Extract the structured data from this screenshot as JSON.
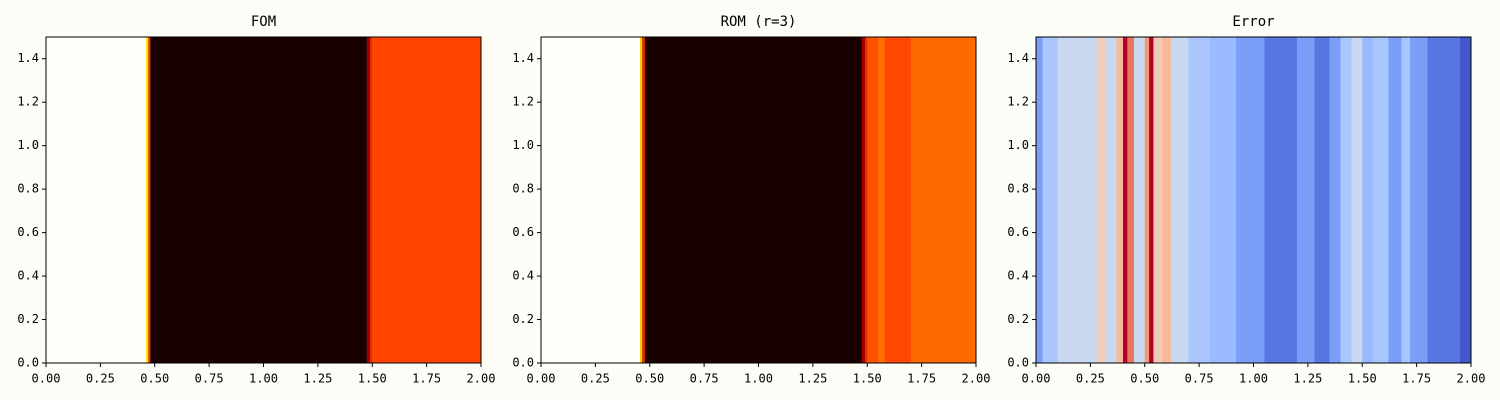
{
  "chart_data": [
    {
      "type": "heatmap",
      "title": "FOM",
      "x_edges": [
        0,
        0.46,
        0.47,
        0.48,
        1.475,
        1.49,
        1.5,
        2.0
      ],
      "colors": [
        "#fffffa",
        "#ffe600",
        "#e04000",
        "#180000",
        "#a00000",
        "#e83000",
        "#ff4500"
      ],
      "xlim": [
        0,
        2
      ],
      "ylim": [
        0,
        1.5
      ],
      "xticks": [
        {
          "value": 0,
          "label": "0.00"
        },
        0.25,
        {
          "value": 0.5,
          "label": "0.50"
        },
        0.75,
        {
          "value": 1,
          "label": "1.00"
        },
        1.25,
        {
          "value": 1.5,
          "label": "1.50"
        },
        1.75,
        {
          "value": 2,
          "label": "2.00"
        }
      ],
      "yticks": [
        {
          "value": 0,
          "label": "0.0"
        },
        0.2,
        0.4,
        0.6,
        0.8,
        {
          "value": 1,
          "label": "1.0"
        },
        1.2,
        1.4
      ]
    },
    {
      "type": "heatmap",
      "title": "ROM (r=3)",
      "x_edges": [
        0,
        0.455,
        0.465,
        0.478,
        1.475,
        1.49,
        1.5,
        1.55,
        1.58,
        1.7,
        2.0
      ],
      "colors": [
        "#fffffa",
        "#ffd000",
        "#d03000",
        "#180000",
        "#a00000",
        "#e83000",
        "#ff5000",
        "#ff7000",
        "#ff4800",
        "#ff6a00"
      ],
      "xlim": [
        0,
        2
      ],
      "ylim": [
        0,
        1.5
      ],
      "xticks": [
        {
          "value": 0,
          "label": "0.00"
        },
        0.25,
        {
          "value": 0.5,
          "label": "0.50"
        },
        0.75,
        {
          "value": 1,
          "label": "1.00"
        },
        1.25,
        {
          "value": 1.5,
          "label": "1.50"
        },
        1.75,
        {
          "value": 2,
          "label": "2.00"
        }
      ],
      "yticks": [
        {
          "value": 0,
          "label": "0.0"
        },
        0.2,
        0.4,
        0.6,
        0.8,
        {
          "value": 1,
          "label": "1.0"
        },
        1.2,
        1.4
      ]
    },
    {
      "type": "heatmap",
      "title": "Error",
      "x_edges": [
        0,
        0.03,
        0.1,
        0.28,
        0.32,
        0.37,
        0.4,
        0.42,
        0.45,
        0.5,
        0.52,
        0.54,
        0.58,
        0.62,
        0.7,
        0.8,
        0.92,
        1.05,
        1.2,
        1.28,
        1.35,
        1.4,
        1.45,
        1.5,
        1.55,
        1.62,
        1.68,
        1.72,
        1.8,
        1.95,
        2.0
      ],
      "colors": [
        "#7a9df8",
        "#aac7fd",
        "#c9d7f0",
        "#f2cbb7",
        "#c9d7f0",
        "#f7b89c",
        "#b40426",
        "#e8765c",
        "#c9d7f0",
        "#f4987a",
        "#b40426",
        "#f2cbb7",
        "#f7b89c",
        "#c9d7f0",
        "#aac7fd",
        "#9abbff",
        "#7b9ff9",
        "#5977e3",
        "#7b9ff9",
        "#5977e3",
        "#7b9ff9",
        "#aac7fd",
        "#c9d7f0",
        "#9abbff",
        "#aac7fd",
        "#7b9ff9",
        "#aac7fd",
        "#7b9ff9",
        "#5977e3",
        "#4358cb"
      ],
      "xlim": [
        0,
        2
      ],
      "ylim": [
        0,
        1.5
      ],
      "xticks": [
        {
          "value": 0,
          "label": "0.00"
        },
        0.25,
        {
          "value": 0.5,
          "label": "0.50"
        },
        0.75,
        {
          "value": 1,
          "label": "1.00"
        },
        1.25,
        {
          "value": 1.5,
          "label": "1.50"
        },
        1.75,
        {
          "value": 2,
          "label": "2.00"
        }
      ],
      "yticks": [
        {
          "value": 0,
          "label": "0.0"
        },
        0.2,
        0.4,
        0.6,
        0.8,
        {
          "value": 1,
          "label": "1.0"
        },
        1.2,
        1.4
      ]
    }
  ]
}
